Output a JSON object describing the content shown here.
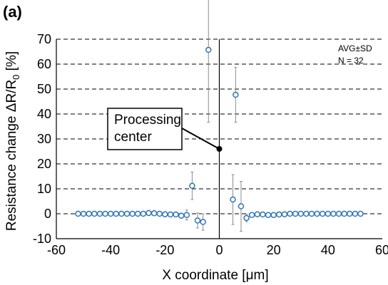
{
  "chart_data": {
    "type": "scatter",
    "panel_label": "(a)",
    "xlabel": "X coordinate [μm]",
    "ylabel": "Resistance change ΔR/R",
    "ylabel_subscript": "0",
    "ylabel_suffix": " [%]",
    "xlim": [
      -60,
      60
    ],
    "ylim": [
      -10,
      70
    ],
    "xticks": [
      -60,
      -40,
      -20,
      0,
      20,
      40,
      60
    ],
    "yticks": [
      -10,
      0,
      10,
      20,
      30,
      40,
      50,
      60,
      70
    ],
    "grid": "horizontal-dashed",
    "stats_text": [
      "AVG±SD",
      "N = 32"
    ],
    "annotation": {
      "lines": [
        "Processing",
        "center"
      ],
      "point": [
        0,
        26
      ]
    },
    "vertical_line_x": 0,
    "marker_color": "#2e75b6",
    "errorbar_color": "#8c8c8c",
    "points": [
      {
        "x": -52,
        "y": 0.0,
        "err": 0.0
      },
      {
        "x": -50,
        "y": 0.0,
        "err": 0.0
      },
      {
        "x": -48,
        "y": 0.0,
        "err": 0.0
      },
      {
        "x": -46,
        "y": 0.0,
        "err": 0.0
      },
      {
        "x": -44,
        "y": 0.0,
        "err": 0.0
      },
      {
        "x": -42,
        "y": 0.0,
        "err": 0.0
      },
      {
        "x": -40,
        "y": 0.0,
        "err": 0.0
      },
      {
        "x": -38,
        "y": 0.0,
        "err": 0.0
      },
      {
        "x": -36,
        "y": 0.0,
        "err": 0.0
      },
      {
        "x": -34,
        "y": 0.0,
        "err": 0.0
      },
      {
        "x": -32,
        "y": 0.0,
        "err": 0.0
      },
      {
        "x": -30,
        "y": 0.0,
        "err": 0.0
      },
      {
        "x": -28,
        "y": 0.0,
        "err": 0.5
      },
      {
        "x": -26,
        "y": 0.3,
        "err": 0.5
      },
      {
        "x": -24,
        "y": 0.2,
        "err": 0.5
      },
      {
        "x": -22,
        "y": 0.0,
        "err": 0.5
      },
      {
        "x": -20,
        "y": -0.2,
        "err": 0.5
      },
      {
        "x": -18,
        "y": -0.3,
        "err": 0.5
      },
      {
        "x": -16,
        "y": -0.3,
        "err": 0.5
      },
      {
        "x": -14,
        "y": -0.8,
        "err": 1.0
      },
      {
        "x": -12,
        "y": -0.5,
        "err": 2.0
      },
      {
        "x": -10,
        "y": 11.2,
        "err": 5.5
      },
      {
        "x": -8,
        "y": -2.7,
        "err": 3.0
      },
      {
        "x": -6,
        "y": -3.3,
        "err": 3.3
      },
      {
        "x": -4,
        "y": 65.7,
        "err": 29.0
      },
      {
        "x": 6,
        "y": 47.7,
        "err": 11.0
      },
      {
        "x": 5,
        "y": 5.7,
        "err": 10.0
      },
      {
        "x": 8,
        "y": 3.0,
        "err": 10.0
      },
      {
        "x": 10,
        "y": -1.7,
        "err": 1.5
      },
      {
        "x": 12,
        "y": -0.5,
        "err": 0.5
      },
      {
        "x": 14,
        "y": -0.2,
        "err": 0.5
      },
      {
        "x": 16,
        "y": -0.3,
        "err": 0.5
      },
      {
        "x": 18,
        "y": -0.5,
        "err": 0.5
      },
      {
        "x": 20,
        "y": -0.5,
        "err": 0.5
      },
      {
        "x": 22,
        "y": -0.3,
        "err": 0.5
      },
      {
        "x": 24,
        "y": -0.2,
        "err": 0.5
      },
      {
        "x": 26,
        "y": 0.0,
        "err": 0.3
      },
      {
        "x": 28,
        "y": 0.0,
        "err": 0.0
      },
      {
        "x": 30,
        "y": 0.0,
        "err": 0.0
      },
      {
        "x": 32,
        "y": 0.0,
        "err": 0.0
      },
      {
        "x": 34,
        "y": 0.0,
        "err": 0.0
      },
      {
        "x": 36,
        "y": 0.0,
        "err": 0.0
      },
      {
        "x": 38,
        "y": 0.0,
        "err": 0.0
      },
      {
        "x": 40,
        "y": 0.0,
        "err": 0.0
      },
      {
        "x": 42,
        "y": 0.0,
        "err": 0.0
      },
      {
        "x": 44,
        "y": 0.0,
        "err": 0.0
      },
      {
        "x": 46,
        "y": 0.0,
        "err": 0.0
      },
      {
        "x": 48,
        "y": 0.0,
        "err": 0.0
      },
      {
        "x": 50,
        "y": 0.0,
        "err": 0.0
      },
      {
        "x": 52,
        "y": 0.0,
        "err": 0.0
      }
    ]
  }
}
